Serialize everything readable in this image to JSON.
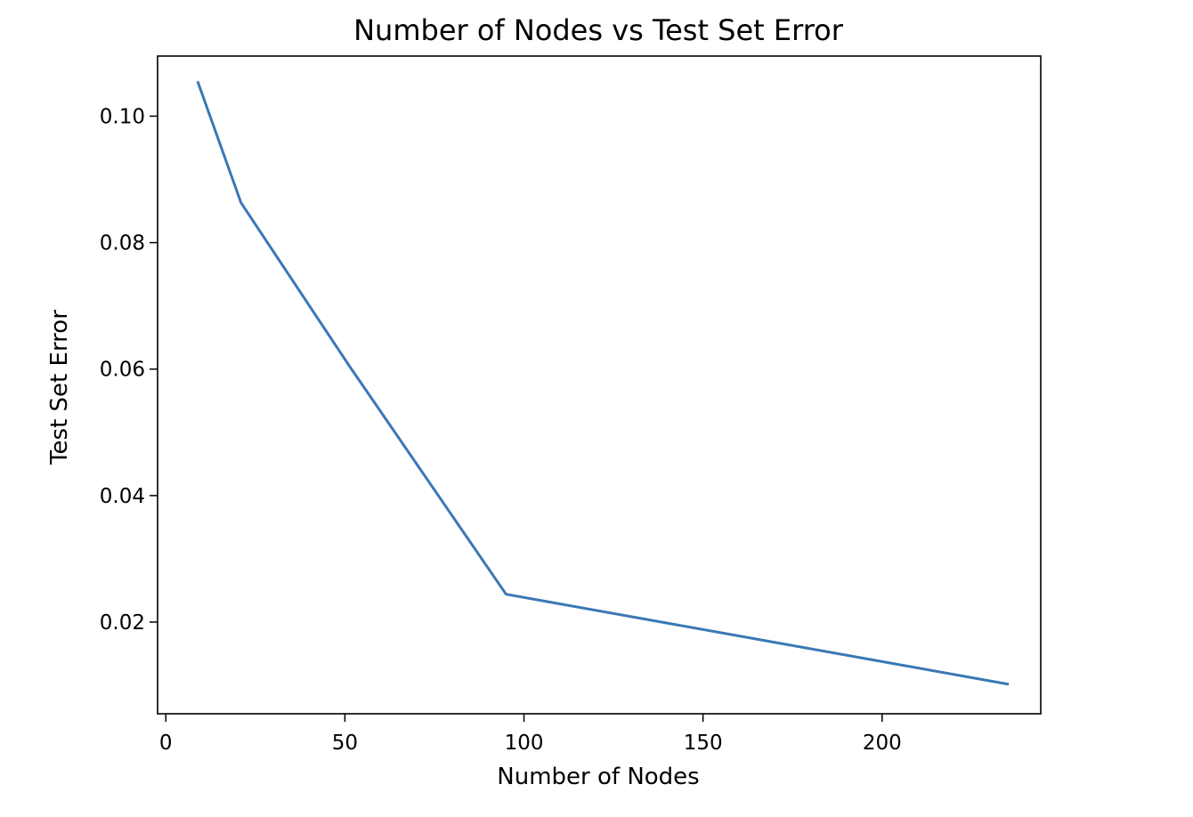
{
  "chart_data": {
    "type": "line",
    "title": "Number of Nodes vs Test Set Error",
    "xlabel": "Number of Nodes",
    "ylabel": "Test Set Error",
    "xlim": [
      -2.3,
      244.3
    ],
    "ylim": [
      0.0055,
      0.1095
    ],
    "xticks": [
      0,
      50,
      100,
      150,
      200
    ],
    "xtick_labels": [
      "0",
      "50",
      "100",
      "150",
      "200"
    ],
    "yticks": [
      0.02,
      0.04,
      0.06,
      0.08,
      0.1
    ],
    "ytick_labels": [
      "0.02",
      "0.04",
      "0.06",
      "0.08",
      "0.10"
    ],
    "grid": false,
    "series": [
      {
        "color": "#3a78b5",
        "x": [
          9,
          21,
          51,
          95,
          235
        ],
        "y": [
          0.1053,
          0.0863,
          0.0607,
          0.0244,
          0.0102
        ]
      }
    ]
  }
}
